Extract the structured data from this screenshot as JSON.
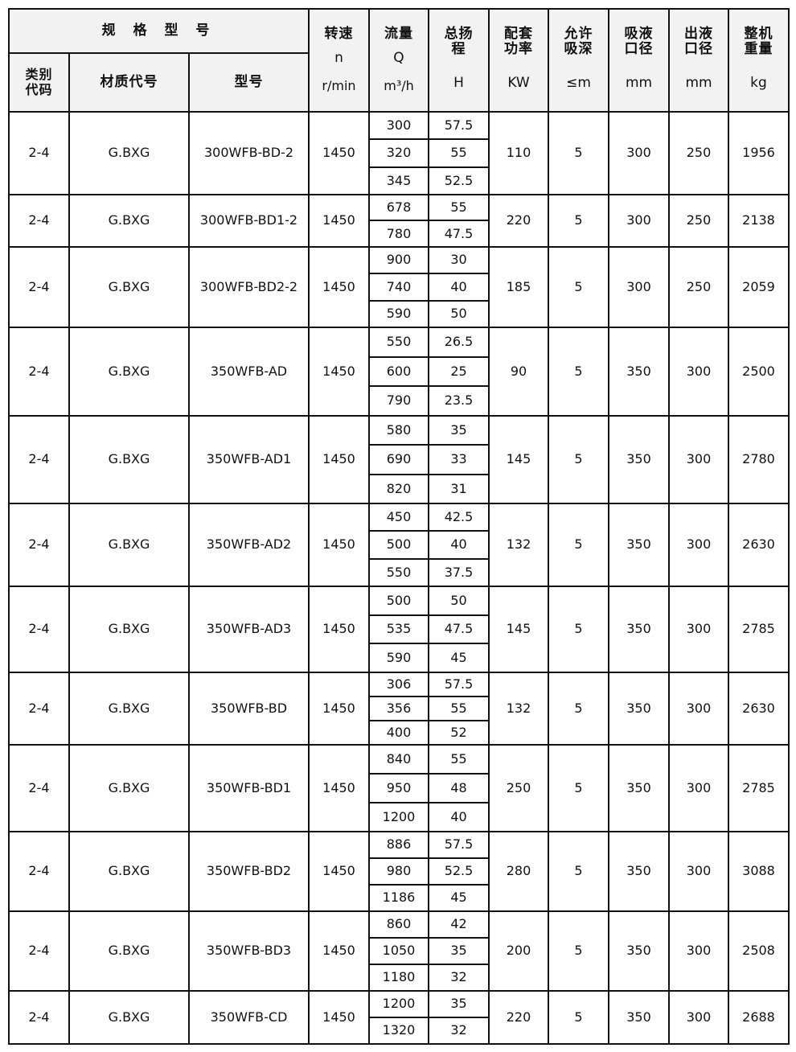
{
  "header": {
    "spec_group": "规 格 型 号",
    "category_code": "类别代码",
    "material_code": "材质代号",
    "model": "型号",
    "speed": {
      "label": "转速",
      "symbol": "n",
      "unit": "r/min"
    },
    "flow": {
      "label": "流量",
      "symbol": "Q",
      "unit": "m³/h"
    },
    "head": {
      "label": "总扬程",
      "symbol": "",
      "unit": "H"
    },
    "power": {
      "label": "配套功率",
      "unit": "KW"
    },
    "suction_depth": {
      "label": "允许吸深",
      "unit": "≤m"
    },
    "inlet": {
      "label": "吸液口径",
      "unit": "mm"
    },
    "outlet": {
      "label": "出液口径",
      "unit": "mm"
    },
    "weight": {
      "label": "整机重量",
      "unit": "kg"
    }
  },
  "rows": [
    {
      "cat": "2-4",
      "mat": "G.BXG",
      "model": "300WFB-BD-2",
      "speed": "1450",
      "flow": [
        "300",
        "320",
        "345"
      ],
      "head": [
        "57.5",
        "55",
        "52.5"
      ],
      "power": "110",
      "depth": "5",
      "inlet": "300",
      "outlet": "250",
      "weight": "1956"
    },
    {
      "cat": "2-4",
      "mat": "G.BXG",
      "model": "300WFB-BD1-2",
      "speed": "1450",
      "flow": [
        "678",
        "780"
      ],
      "head": [
        "55",
        "47.5"
      ],
      "power": "220",
      "depth": "5",
      "inlet": "300",
      "outlet": "250",
      "weight": "2138"
    },
    {
      "cat": "2-4",
      "mat": "G.BXG",
      "model": "300WFB-BD2-2",
      "speed": "1450",
      "flow": [
        "900",
        "740",
        "590"
      ],
      "head": [
        "30",
        "40",
        "50"
      ],
      "power": "185",
      "depth": "5",
      "inlet": "300",
      "outlet": "250",
      "weight": "2059"
    },
    {
      "cat": "2-4",
      "mat": "G.BXG",
      "model": "350WFB-AD",
      "speed": "1450",
      "flow": [
        "550",
        "600",
        "790"
      ],
      "head": [
        "26.5",
        "25",
        "23.5"
      ],
      "power": "90",
      "depth": "5",
      "inlet": "350",
      "outlet": "300",
      "weight": "2500"
    },
    {
      "cat": "2-4",
      "mat": "G.BXG",
      "model": "350WFB-AD1",
      "speed": "1450",
      "flow": [
        "580",
        "690",
        "820"
      ],
      "head": [
        "35",
        "33",
        "31"
      ],
      "power": "145",
      "depth": "5",
      "inlet": "350",
      "outlet": "300",
      "weight": "2780"
    },
    {
      "cat": "2-4",
      "mat": "G.BXG",
      "model": "350WFB-AD2",
      "speed": "1450",
      "flow": [
        "450",
        "500",
        "550"
      ],
      "head": [
        "42.5",
        "40",
        "37.5"
      ],
      "power": "132",
      "depth": "5",
      "inlet": "350",
      "outlet": "300",
      "weight": "2630"
    },
    {
      "cat": "2-4",
      "mat": "G.BXG",
      "model": "350WFB-AD3",
      "speed": "1450",
      "flow": [
        "500",
        "535",
        "590"
      ],
      "head": [
        "50",
        "47.5",
        "45"
      ],
      "power": "145",
      "depth": "5",
      "inlet": "350",
      "outlet": "300",
      "weight": "2785"
    },
    {
      "cat": "2-4",
      "mat": "G.BXG",
      "model": "350WFB-BD",
      "speed": "1450",
      "flow": [
        "306",
        "356",
        "400"
      ],
      "head": [
        "57.5",
        "55",
        "52"
      ],
      "power": "132",
      "depth": "5",
      "inlet": "350",
      "outlet": "300",
      "weight": "2630"
    },
    {
      "cat": "2-4",
      "mat": "G.BXG",
      "model": "350WFB-BD1",
      "speed": "1450",
      "flow": [
        "840",
        "950",
        "1200"
      ],
      "head": [
        "55",
        "48",
        "40"
      ],
      "power": "250",
      "depth": "5",
      "inlet": "350",
      "outlet": "300",
      "weight": "2785"
    },
    {
      "cat": "2-4",
      "mat": "G.BXG",
      "model": "350WFB-BD2",
      "speed": "1450",
      "flow": [
        "886",
        "980",
        "1186"
      ],
      "head": [
        "57.5",
        "52.5",
        "45"
      ],
      "power": "280",
      "depth": "5",
      "inlet": "350",
      "outlet": "300",
      "weight": "3088"
    },
    {
      "cat": "2-4",
      "mat": "G.BXG",
      "model": "350WFB-BD3",
      "speed": "1450",
      "flow": [
        "860",
        "1050",
        "1180"
      ],
      "head": [
        "42",
        "35",
        "32"
      ],
      "power": "200",
      "depth": "5",
      "inlet": "350",
      "outlet": "300",
      "weight": "2508"
    },
    {
      "cat": "2-4",
      "mat": "G.BXG",
      "model": "350WFB-CD",
      "speed": "1450",
      "flow": [
        "1200",
        "1320"
      ],
      "head": [
        "35",
        "32"
      ],
      "power": "220",
      "depth": "5",
      "inlet": "350",
      "outlet": "300",
      "weight": "2688"
    }
  ]
}
